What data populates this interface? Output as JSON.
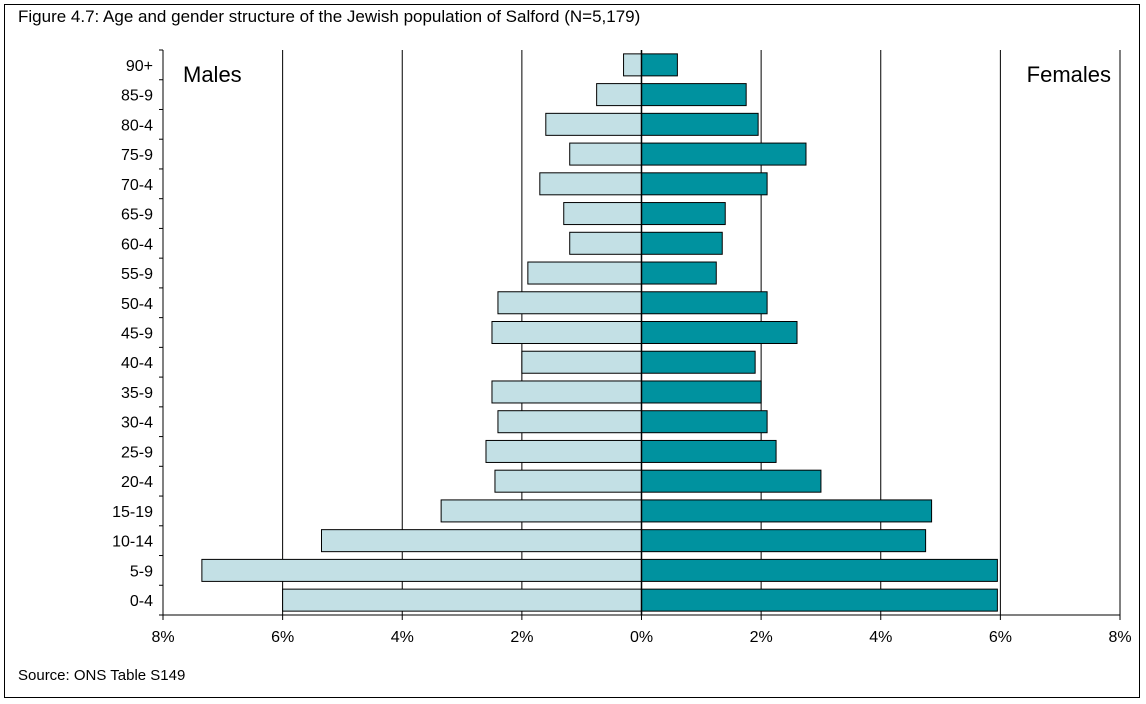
{
  "figure": {
    "title": "Figure 4.7: Age and gender structure of the Jewish population of Salford (N=5,179)",
    "source": "Source: ONS Table S149"
  },
  "chart_data": {
    "type": "bar",
    "orientation": "horizontal",
    "title": "Figure 4.7: Age and gender structure of the Jewish population of Salford (N=5,179)",
    "categories": [
      "90+",
      "85-9",
      "80-4",
      "75-9",
      "70-4",
      "65-9",
      "60-4",
      "55-9",
      "50-4",
      "45-9",
      "40-4",
      "35-9",
      "30-4",
      "25-9",
      "20-4",
      "15-19",
      "10-14",
      "5-9",
      "0-4"
    ],
    "series": [
      {
        "name": "Males",
        "color": "#c3e0e5",
        "values": [
          0.3,
          0.75,
          1.6,
          1.2,
          1.7,
          1.3,
          1.2,
          1.9,
          2.4,
          2.5,
          2.0,
          2.5,
          2.4,
          2.6,
          2.45,
          3.35,
          5.35,
          7.35,
          6.0
        ]
      },
      {
        "name": "Females",
        "color": "#00929f",
        "values": [
          0.6,
          1.75,
          1.95,
          2.75,
          2.1,
          1.4,
          1.35,
          1.25,
          2.1,
          2.6,
          1.9,
          2.0,
          2.1,
          2.25,
          3.0,
          4.85,
          4.75,
          5.95,
          5.95
        ]
      }
    ],
    "xticks": [
      "8%",
      "6%",
      "4%",
      "2%",
      "0%",
      "2%",
      "4%",
      "6%",
      "8%"
    ],
    "xlim": [
      -8,
      8
    ],
    "grid": true,
    "legend": "none"
  }
}
